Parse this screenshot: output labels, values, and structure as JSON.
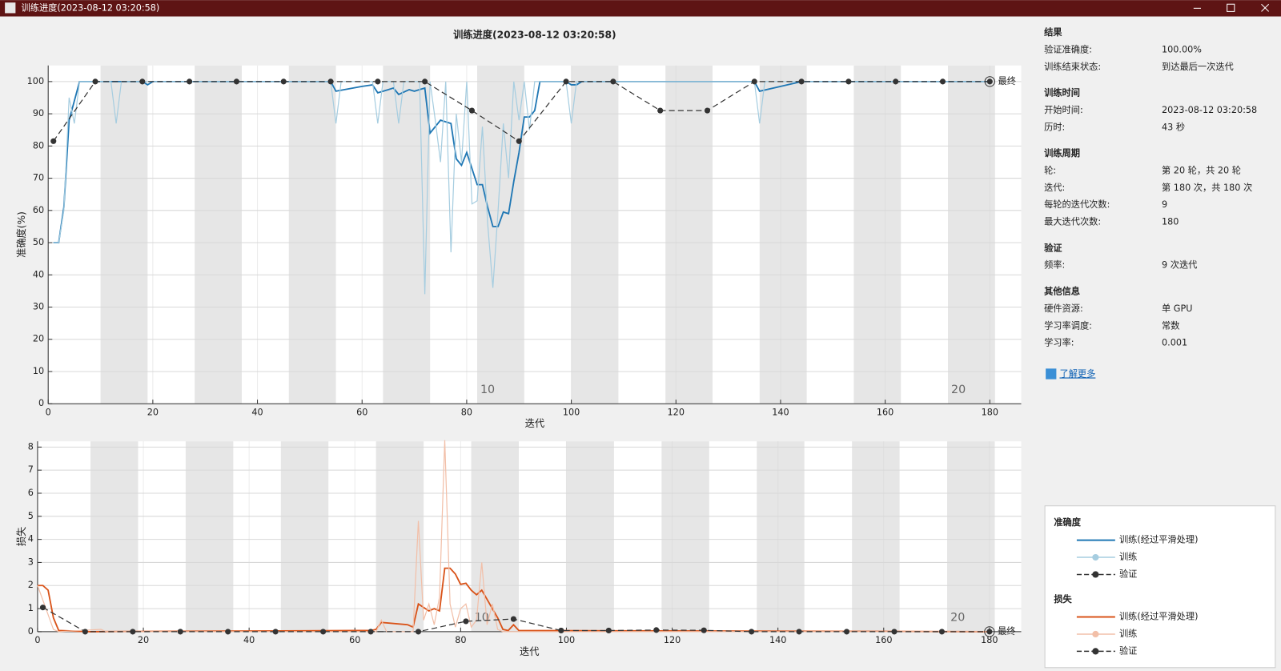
{
  "window": {
    "title": "训练进度(2023-08-12 03:20:58)"
  },
  "info": {
    "sections": [
      {
        "heading": "结果",
        "rows": [
          [
            "验证准确度:",
            "100.00%"
          ],
          [
            "训练结束状态:",
            "到达最后一次迭代"
          ]
        ]
      },
      {
        "heading": "训练时间",
        "rows": [
          [
            "开始时间:",
            "2023-08-12 03:20:58"
          ],
          [
            "历时:",
            "43 秒"
          ]
        ]
      },
      {
        "heading": "训练周期",
        "rows": [
          [
            "轮:",
            "第 20 轮，共 20 轮"
          ],
          [
            "迭代:",
            "第 180 次，共 180 次"
          ],
          [
            "每轮的迭代次数:",
            "9"
          ],
          [
            "最大迭代次数:",
            "180"
          ]
        ]
      },
      {
        "heading": "验证",
        "rows": [
          [
            "频率:",
            "9 次迭代"
          ]
        ]
      },
      {
        "heading": "其他信息",
        "rows": [
          [
            "硬件资源:",
            "单 GPU"
          ],
          [
            "学习率调度:",
            "常数"
          ],
          [
            "学习率:",
            "0.001"
          ]
        ]
      }
    ],
    "link": "了解更多"
  },
  "chart_data": [
    {
      "type": "line",
      "title": "训练进度(2023-08-12 03:20:58)",
      "xlabel": "迭代",
      "ylabel": "准确度(%)",
      "legend_title": "准确度",
      "xlim": [
        0,
        186
      ],
      "ylim": [
        0,
        105
      ],
      "xticks": [
        0,
        20,
        40,
        60,
        80,
        100,
        120,
        140,
        160,
        180
      ],
      "yticks": [
        0,
        10,
        20,
        30,
        40,
        50,
        60,
        70,
        80,
        90,
        100
      ],
      "grid": true,
      "epoch_length": 9,
      "epoch_labels": [
        10,
        20
      ],
      "final_label": "最终",
      "series": [
        {
          "name": "训练(经过平滑处理)",
          "color": "#1f77b4",
          "style": "smoothed",
          "x": [
            1,
            2,
            3,
            4,
            5,
            6,
            10,
            18,
            19,
            20,
            54,
            55,
            60,
            62,
            63,
            65,
            66,
            67,
            69,
            70,
            72,
            73,
            75,
            77,
            78,
            79,
            80,
            82,
            83,
            84,
            85,
            86,
            87,
            88,
            89,
            90,
            91,
            92,
            93,
            94,
            99,
            100,
            101,
            102,
            108,
            135,
            136,
            144,
            180
          ],
          "values": [
            50,
            50,
            61,
            88,
            94,
            100,
            100,
            100,
            99,
            100,
            100,
            97,
            98.5,
            99,
            96.5,
            97.5,
            98,
            96,
            97.5,
            97,
            98,
            84,
            88,
            87,
            76,
            74,
            78,
            68,
            68,
            61,
            55,
            55,
            59.5,
            59,
            69,
            78,
            89,
            89,
            91,
            100,
            100,
            99,
            99,
            100,
            100,
            100,
            97,
            100,
            100
          ]
        },
        {
          "name": "训练",
          "color": "#a6cde0",
          "style": "raw",
          "x": [
            1,
            2,
            3,
            4,
            5,
            6,
            12,
            13,
            14,
            54,
            55,
            56,
            62,
            63,
            64,
            66,
            67,
            68,
            71,
            72,
            73,
            74,
            75,
            76,
            77,
            78,
            79,
            80,
            81,
            82,
            83,
            84,
            85,
            86,
            87,
            88,
            89,
            90,
            91,
            92,
            93,
            99,
            100,
            101,
            135,
            136,
            137,
            180
          ],
          "values": [
            50,
            50,
            60,
            95,
            87,
            100,
            100,
            87,
            100,
            100,
            87,
            100,
            100,
            87,
            100,
            100,
            87,
            100,
            100,
            34,
            100,
            88,
            75,
            100,
            47,
            90,
            75,
            100,
            62,
            63,
            86,
            56,
            36,
            60,
            87,
            70,
            100,
            88,
            100,
            85,
            100,
            100,
            87,
            100,
            100,
            87,
            100,
            100
          ]
        },
        {
          "name": "验证",
          "color": "#333333",
          "style": "validation",
          "x": [
            1,
            9,
            18,
            27,
            36,
            45,
            54,
            63,
            72,
            81,
            90,
            99,
            108,
            117,
            126,
            135,
            144,
            153,
            162,
            171,
            180
          ],
          "values": [
            81.5,
            100,
            100,
            100,
            100,
            100,
            100,
            100,
            100,
            91,
            81.5,
            100,
            100,
            91,
            91,
            100,
            100,
            100,
            100,
            100,
            100
          ]
        }
      ]
    },
    {
      "type": "line",
      "xlabel": "迭代",
      "ylabel": "损失",
      "legend_title": "损失",
      "xlim": [
        0,
        186
      ],
      "ylim": [
        0,
        8.25
      ],
      "xticks": [
        0,
        20,
        40,
        60,
        80,
        100,
        120,
        140,
        160,
        180
      ],
      "yticks": [
        0,
        1,
        2,
        3,
        4,
        5,
        6,
        7,
        8
      ],
      "grid": true,
      "epoch_length": 9,
      "epoch_labels": [
        10,
        20
      ],
      "final_label": "最终",
      "series": [
        {
          "name": "训练(经过平滑处理)",
          "color": "#d95319",
          "style": "smoothed",
          "x": [
            0,
            1,
            2,
            3,
            4,
            10,
            60,
            63,
            64,
            65,
            70,
            71,
            72,
            74,
            75,
            76,
            77,
            78,
            79,
            80,
            81,
            82,
            83,
            84,
            85,
            86,
            87,
            88,
            89,
            90,
            91,
            180
          ],
          "values": [
            2,
            2,
            1.8,
            0.6,
            0.05,
            0,
            0.05,
            0.05,
            0.1,
            0.4,
            0.3,
            0.2,
            1.2,
            0.9,
            1,
            0.9,
            2.75,
            2.75,
            2.5,
            2.05,
            2.1,
            1.8,
            1.6,
            1.8,
            1.4,
            1,
            0.6,
            0.1,
            0.05,
            0.3,
            0.05,
            0
          ]
        },
        {
          "name": "训练",
          "color": "#f2bfa8",
          "style": "raw",
          "x": [
            0,
            3,
            4,
            12,
            13,
            64,
            65,
            66,
            71,
            72,
            73,
            74,
            75,
            76,
            77,
            78,
            79,
            80,
            81,
            82,
            83,
            84,
            85,
            86,
            87,
            88,
            180
          ],
          "values": [
            2,
            0.1,
            0,
            0.1,
            0,
            0,
            0.5,
            0,
            0,
            4.8,
            0.5,
            1.2,
            0.3,
            1.5,
            8.3,
            1.2,
            0.2,
            1,
            1.2,
            0.2,
            0.5,
            3,
            0.3,
            1.2,
            0.1,
            0,
            0
          ]
        },
        {
          "name": "验证",
          "color": "#333333",
          "style": "validation",
          "x": [
            1,
            9,
            18,
            27,
            36,
            45,
            54,
            63,
            72,
            81,
            90,
            99,
            108,
            117,
            126,
            135,
            144,
            153,
            162,
            171,
            180
          ],
          "values": [
            1.05,
            0,
            0,
            0,
            0,
            0,
            0,
            0,
            0,
            0.45,
            0.55,
            0.05,
            0.05,
            0.07,
            0.06,
            0,
            0,
            0,
            0,
            0,
            0
          ]
        }
      ]
    }
  ]
}
